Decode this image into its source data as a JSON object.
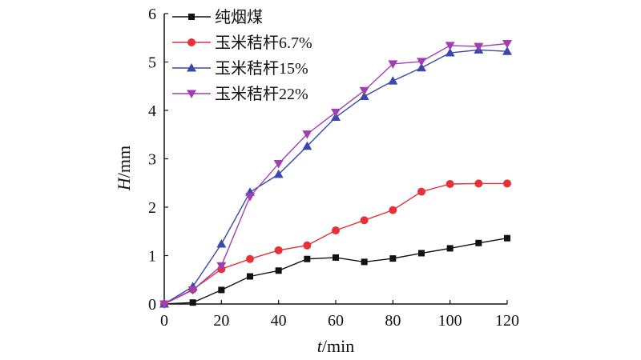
{
  "chart_data": {
    "type": "line",
    "title": "",
    "xlabel": {
      "var": "t",
      "unit": "/min"
    },
    "ylabel": {
      "var": "H",
      "unit": "/mm"
    },
    "xlim": [
      0,
      120
    ],
    "ylim": [
      0,
      6
    ],
    "xticks": [
      0,
      20,
      40,
      60,
      80,
      100,
      120
    ],
    "yticks": [
      0,
      1,
      2,
      3,
      4,
      5,
      6
    ],
    "grid": false,
    "legend_position": "top-left",
    "x": [
      0,
      10,
      20,
      30,
      40,
      50,
      60,
      70,
      80,
      90,
      100,
      110,
      120
    ],
    "series": [
      {
        "name": "纯烟煤",
        "marker": "square",
        "color": "#111111",
        "values": [
          0,
          0.03,
          0.29,
          0.57,
          0.69,
          0.93,
          0.96,
          0.87,
          0.94,
          1.05,
          1.15,
          1.26,
          1.36
        ]
      },
      {
        "name": "玉米秸杆6.7%",
        "marker": "circle",
        "color": "#e8303a",
        "values": [
          0,
          0.3,
          0.72,
          0.93,
          1.11,
          1.21,
          1.52,
          1.73,
          1.94,
          2.32,
          2.48,
          2.49,
          2.49
        ]
      },
      {
        "name": "玉米秸杆15%",
        "marker": "triangle-up",
        "color": "#3a48a8",
        "values": [
          0,
          0.36,
          1.24,
          2.31,
          2.68,
          3.26,
          3.86,
          4.29,
          4.61,
          4.88,
          5.19,
          5.25,
          5.22
        ]
      },
      {
        "name": "玉米秸杆22%",
        "marker": "triangle-down",
        "color": "#a040b0",
        "values": [
          0,
          0.29,
          0.79,
          2.22,
          2.9,
          3.51,
          3.96,
          4.41,
          4.96,
          5.01,
          5.34,
          5.32,
          5.38
        ]
      }
    ]
  }
}
